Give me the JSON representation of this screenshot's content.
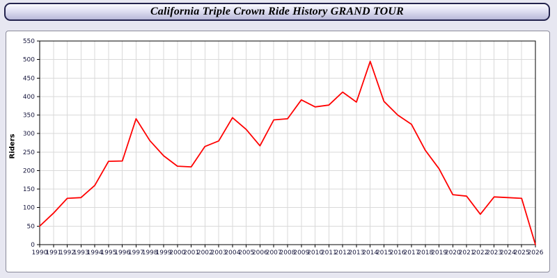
{
  "window": {
    "title": "California Triple Crown Ride History GRAND TOUR"
  },
  "colors": {
    "line": "#ff0000",
    "grid": "#d9d9d9",
    "axis": "#000000",
    "page_background": "#e7e7f1",
    "panel_background": "#ffffff",
    "title_bar_border": "#23234d"
  },
  "chart_data": {
    "type": "line",
    "title": "California Triple Crown Ride History GRAND TOUR",
    "xlabel": "",
    "ylabel": "Riders",
    "ylim": [
      0,
      550
    ],
    "ytick_step": 50,
    "grid": true,
    "legend": "none",
    "line_color": "#ff0000",
    "x": [
      1990,
      1991,
      1992,
      1993,
      1994,
      1995,
      1996,
      1997,
      1998,
      1999,
      2000,
      2001,
      2002,
      2003,
      2004,
      2005,
      2006,
      2007,
      2008,
      2009,
      2010,
      2011,
      2012,
      2013,
      2014,
      2015,
      2016,
      2017,
      2018,
      2019,
      2020,
      2021,
      2022,
      2023,
      2024,
      2025,
      2026
    ],
    "values": [
      50,
      85,
      125,
      127,
      160,
      225,
      226,
      340,
      281,
      240,
      212,
      210,
      265,
      280,
      343,
      311,
      267,
      337,
      340,
      391,
      372,
      377,
      412,
      385,
      495,
      387,
      350,
      325,
      255,
      205,
      135,
      131,
      82,
      129,
      127,
      125,
      0
    ]
  }
}
